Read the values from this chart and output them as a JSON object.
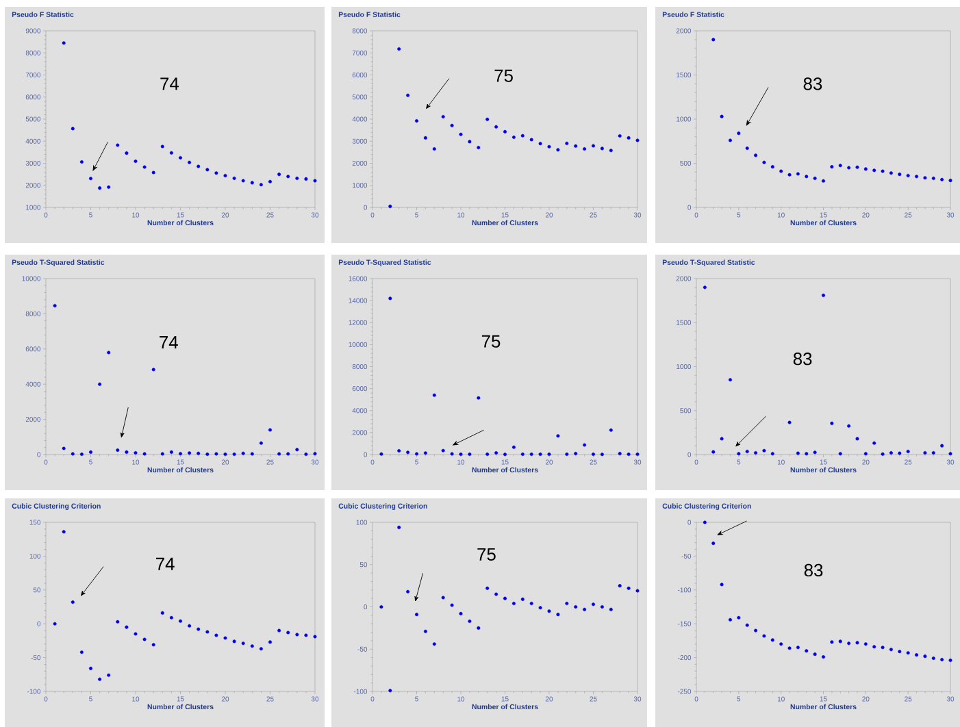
{
  "chart_data": [
    {
      "type": "scatter",
      "title": "Pseudo F Statistic",
      "xlabel": "Number of Clusters",
      "color": "#0000ee",
      "marker": "circle",
      "xlim": [
        0,
        30
      ],
      "ylim": [
        1000,
        9000
      ],
      "xticks": [
        0,
        5,
        10,
        15,
        20,
        25,
        30
      ],
      "yticks": [
        1000,
        2000,
        3000,
        4000,
        5000,
        6000,
        7000,
        8000,
        9000
      ],
      "x": [
        2,
        3,
        4,
        5,
        6,
        7,
        8,
        9,
        10,
        11,
        12,
        13,
        14,
        15,
        16,
        17,
        18,
        19,
        20,
        21,
        22,
        23,
        24,
        25,
        26,
        27,
        28,
        29,
        30
      ],
      "values": [
        8450,
        4570,
        3060,
        2310,
        1880,
        1920,
        3820,
        3460,
        3090,
        2830,
        2580,
        3760,
        3470,
        3250,
        3040,
        2860,
        2710,
        2560,
        2440,
        2320,
        2210,
        2120,
        2030,
        2170,
        2500,
        2400,
        2320,
        2290,
        2210
      ],
      "annotations": [
        "74"
      ]
    },
    {
      "type": "scatter",
      "title": "Pseudo F Statistic",
      "xlabel": "Number of Clusters",
      "color": "#0000ee",
      "marker": "circle",
      "xlim": [
        0,
        30
      ],
      "ylim": [
        0,
        8000
      ],
      "xticks": [
        0,
        5,
        10,
        15,
        20,
        25,
        30
      ],
      "yticks": [
        0,
        1000,
        2000,
        3000,
        4000,
        5000,
        6000,
        7000,
        8000
      ],
      "x": [
        2,
        3,
        4,
        5,
        6,
        7,
        8,
        9,
        10,
        11,
        12,
        13,
        14,
        15,
        16,
        17,
        18,
        19,
        20,
        21,
        22,
        23,
        24,
        25,
        26,
        27,
        28,
        29,
        30
      ],
      "values": [
        50,
        7180,
        5080,
        3920,
        3150,
        2650,
        4110,
        3710,
        3310,
        2980,
        2710,
        3990,
        3650,
        3430,
        3180,
        3250,
        3070,
        2890,
        2750,
        2610,
        2900,
        2780,
        2650,
        2790,
        2670,
        2580,
        3240,
        3150,
        3040
      ],
      "annotations": [
        "75"
      ]
    },
    {
      "type": "scatter",
      "title": "Pseudo F Statistic",
      "xlabel": "Number of Clusters",
      "color": "#0000ee",
      "marker": "circle",
      "xlim": [
        0,
        30
      ],
      "ylim": [
        0,
        2000
      ],
      "xticks": [
        0,
        5,
        10,
        15,
        20,
        25,
        30
      ],
      "yticks": [
        0,
        500,
        1000,
        1500,
        2000
      ],
      "x": [
        2,
        3,
        4,
        5,
        6,
        7,
        8,
        9,
        10,
        11,
        12,
        13,
        14,
        15,
        16,
        17,
        18,
        19,
        20,
        21,
        22,
        23,
        24,
        25,
        26,
        27,
        28,
        29,
        30
      ],
      "values": [
        1900,
        1030,
        760,
        840,
        670,
        590,
        510,
        460,
        410,
        370,
        380,
        350,
        330,
        300,
        460,
        475,
        450,
        455,
        435,
        420,
        410,
        390,
        375,
        360,
        350,
        335,
        330,
        315,
        305
      ],
      "annotations": [
        "83"
      ]
    },
    {
      "type": "scatter",
      "title": "Pseudo T-Squared Statistic",
      "xlabel": "Number of Clusters",
      "color": "#0000ee",
      "marker": "circle",
      "xlim": [
        0,
        30
      ],
      "ylim": [
        0,
        10000
      ],
      "xticks": [
        0,
        5,
        10,
        15,
        20,
        25,
        30
      ],
      "yticks": [
        0,
        2000,
        4000,
        6000,
        8000,
        10000
      ],
      "x": [
        1,
        2,
        3,
        4,
        5,
        6,
        7,
        8,
        9,
        10,
        11,
        12,
        13,
        14,
        15,
        16,
        17,
        18,
        19,
        20,
        21,
        22,
        23,
        24,
        25,
        26,
        27,
        28,
        29,
        30
      ],
      "values": [
        8460,
        350,
        40,
        20,
        140,
        4000,
        5800,
        250,
        140,
        100,
        40,
        4830,
        40,
        140,
        50,
        90,
        70,
        20,
        40,
        20,
        20,
        70,
        40,
        650,
        1400,
        40,
        40,
        280,
        20,
        50
      ],
      "annotations": [
        "74"
      ]
    },
    {
      "type": "scatter",
      "title": "Pseudo T-Squared Statistic",
      "xlabel": "Number of Clusters",
      "color": "#0000ee",
      "marker": "circle",
      "xlim": [
        0,
        30
      ],
      "ylim": [
        0,
        16000
      ],
      "xticks": [
        0,
        5,
        10,
        15,
        20,
        25,
        30
      ],
      "yticks": [
        0,
        2000,
        4000,
        6000,
        8000,
        10000,
        12000,
        14000,
        16000
      ],
      "x": [
        1,
        2,
        3,
        4,
        5,
        6,
        7,
        8,
        9,
        10,
        11,
        12,
        13,
        14,
        15,
        16,
        17,
        18,
        19,
        20,
        21,
        22,
        23,
        24,
        25,
        26,
        27,
        28,
        29,
        30
      ],
      "values": [
        50,
        14200,
        340,
        200,
        60,
        140,
        5400,
        360,
        60,
        30,
        30,
        5150,
        30,
        150,
        20,
        670,
        30,
        30,
        30,
        30,
        1700,
        30,
        90,
        870,
        30,
        20,
        2220,
        90,
        30,
        30
      ],
      "annotations": [
        "75"
      ]
    },
    {
      "type": "scatter",
      "title": "Pseudo T-Squared Statistic",
      "xlabel": "Number of Clusters",
      "color": "#0000ee",
      "marker": "circle",
      "xlim": [
        0,
        30
      ],
      "ylim": [
        0,
        2000
      ],
      "xticks": [
        0,
        5,
        10,
        15,
        20,
        25,
        30
      ],
      "yticks": [
        0,
        500,
        1000,
        1500,
        2000
      ],
      "x": [
        1,
        2,
        3,
        4,
        5,
        6,
        7,
        8,
        9,
        10,
        11,
        12,
        13,
        14,
        15,
        16,
        17,
        18,
        19,
        20,
        21,
        22,
        23,
        24,
        25,
        26,
        27,
        28,
        29,
        30
      ],
      "values": [
        1900,
        30,
        180,
        850,
        10,
        35,
        20,
        45,
        10,
        null,
        365,
        15,
        10,
        25,
        1810,
        355,
        10,
        325,
        180,
        10,
        130,
        5,
        20,
        15,
        35,
        null,
        20,
        20,
        100,
        10
      ],
      "annotations": [
        "83"
      ]
    },
    {
      "type": "scatter",
      "title": "Cubic Clustering Criterion",
      "xlabel": "Number of Clusters",
      "color": "#0000ee",
      "marker": "circle",
      "xlim": [
        0,
        30
      ],
      "ylim": [
        -100,
        150
      ],
      "xticks": [
        0,
        5,
        10,
        15,
        20,
        25,
        30
      ],
      "yticks": [
        -100,
        -50,
        0,
        50,
        100,
        150
      ],
      "x": [
        1,
        2,
        3,
        4,
        5,
        6,
        7,
        8,
        9,
        10,
        11,
        12,
        13,
        14,
        15,
        16,
        17,
        18,
        19,
        20,
        21,
        22,
        23,
        24,
        25,
        26,
        27,
        28,
        29,
        30
      ],
      "values": [
        0,
        136,
        32,
        -42,
        -66,
        -82,
        -76,
        3,
        -5,
        -15,
        -23,
        -31,
        16,
        9,
        4,
        -3,
        -8,
        -12,
        -17,
        -21,
        -26,
        -29,
        -33,
        -37,
        -27,
        -10,
        -13,
        -16,
        -17,
        -19
      ],
      "annotations": [
        "74"
      ]
    },
    {
      "type": "scatter",
      "title": "Cubic Clustering Criterion",
      "xlabel": "Number of Clusters",
      "color": "#0000ee",
      "marker": "circle",
      "xlim": [
        0,
        30
      ],
      "ylim": [
        -100,
        100
      ],
      "xticks": [
        0,
        5,
        10,
        15,
        20,
        25,
        30
      ],
      "yticks": [
        -100,
        -50,
        0,
        50,
        100
      ],
      "x": [
        1,
        2,
        3,
        4,
        5,
        6,
        7,
        8,
        9,
        10,
        11,
        12,
        13,
        14,
        15,
        16,
        17,
        18,
        19,
        20,
        21,
        22,
        23,
        24,
        25,
        26,
        27,
        28,
        29,
        30
      ],
      "values": [
        0,
        -99,
        94,
        18,
        -9,
        -29,
        -44,
        11,
        2,
        -8,
        -17,
        -25,
        22,
        15,
        10,
        4,
        9,
        4,
        -1,
        -5,
        -9,
        4,
        0,
        -3,
        3,
        0,
        -3,
        25,
        22,
        19
      ],
      "annotations": [
        "75"
      ]
    },
    {
      "type": "scatter",
      "title": "Cubic Clustering Criterion",
      "xlabel": "Number of Clusters",
      "color": "#0000ee",
      "marker": "circle",
      "xlim": [
        0,
        30
      ],
      "ylim": [
        -250,
        0
      ],
      "xticks": [
        0,
        5,
        10,
        15,
        20,
        25,
        30
      ],
      "yticks": [
        -250,
        -200,
        -150,
        -100,
        -50,
        0
      ],
      "x": [
        1,
        2,
        3,
        4,
        5,
        6,
        7,
        8,
        9,
        10,
        11,
        12,
        13,
        14,
        15,
        16,
        17,
        18,
        19,
        20,
        21,
        22,
        23,
        24,
        25,
        26,
        27,
        28,
        29,
        30
      ],
      "values": [
        0,
        -31,
        -92,
        -144,
        -141,
        -152,
        -160,
        -168,
        -174,
        -180,
        -186,
        -185,
        -190,
        -195,
        -199,
        -177,
        -176,
        -179,
        -178,
        -180,
        -184,
        -185,
        -188,
        -191,
        -193,
        -196,
        -198,
        -201,
        -203,
        -204
      ],
      "annotations": [
        "83"
      ]
    }
  ]
}
